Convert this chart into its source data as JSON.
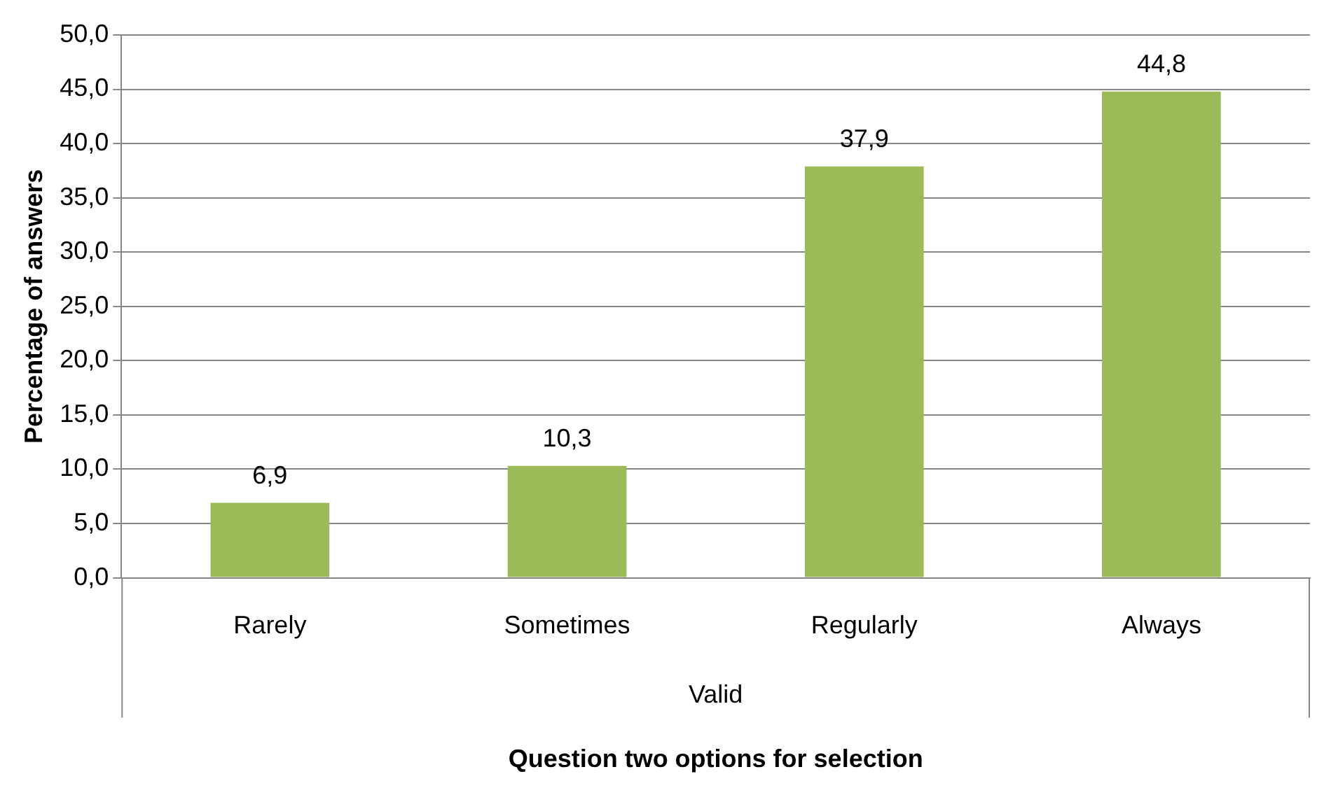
{
  "chart_data": {
    "type": "bar",
    "xlabel": "Question two options for selection",
    "ylabel": "Percentage of answers",
    "categories": [
      "Rarely",
      "Sometimes",
      "Regularly",
      "Always"
    ],
    "values": [
      6.9,
      10.3,
      37.9,
      44.8
    ],
    "color": "#9bbb59",
    "value_labels": [
      "6,9",
      "10,3",
      "37,9",
      "44,8"
    ],
    "ylim": [
      0,
      50
    ],
    "yticks": [
      {
        "value": 0,
        "label": "0,0"
      },
      {
        "value": 5,
        "label": "5,0"
      },
      {
        "value": 10,
        "label": "10,0"
      },
      {
        "value": 15,
        "label": "15,0"
      },
      {
        "value": 20,
        "label": "20,0"
      },
      {
        "value": 25,
        "label": "25,0"
      },
      {
        "value": 30,
        "label": "30,0"
      },
      {
        "value": 35,
        "label": "35,0"
      },
      {
        "value": 40,
        "label": "40,0"
      },
      {
        "value": 45,
        "label": "45,0"
      },
      {
        "value": 50,
        "label": "50,0"
      }
    ],
    "grid": "y",
    "legend": false,
    "annotations": [
      "Valid"
    ]
  }
}
